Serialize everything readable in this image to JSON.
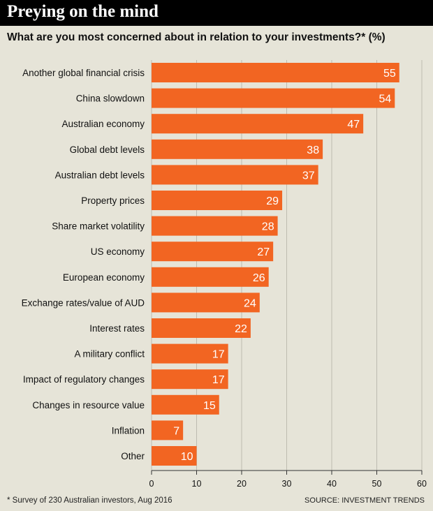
{
  "header": {
    "title": "Preying on the mind",
    "subtitle": "What are you most concerned about in relation to your investments?* (%)"
  },
  "footer": {
    "footnote": "* Survey of 230 Australian investors, Aug 2016",
    "source": "SOURCE: INVESTMENT TRENDS"
  },
  "colors": {
    "bar": "#f26522",
    "bar_label": "#ffffff",
    "background": "#e6e4d8",
    "grid": "#bdbbb0"
  },
  "chart_data": {
    "type": "bar",
    "orientation": "horizontal",
    "title": "Preying on the mind",
    "subtitle": "What are you most concerned about in relation to your investments?* (%)",
    "categories": [
      "Another global financial crisis",
      "China slowdown",
      "Australian economy",
      "Global debt levels",
      "Australian debt levels",
      "Property prices",
      "Share market volatility",
      "US economy",
      "European economy",
      "Exchange rates/value of AUD",
      "Interest rates",
      "A military conflict",
      "Impact of regulatory changes",
      "Changes in resource value",
      "Inflation",
      "Other"
    ],
    "values": [
      55,
      54,
      47,
      38,
      37,
      29,
      28,
      27,
      26,
      24,
      22,
      17,
      17,
      15,
      7,
      10
    ],
    "xlim": [
      0,
      60
    ],
    "xticks": [
      0,
      10,
      20,
      30,
      40,
      50,
      60
    ],
    "grid": true,
    "legend": "none"
  }
}
